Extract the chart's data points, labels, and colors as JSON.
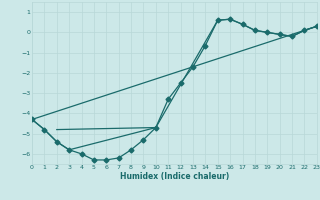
{
  "xlabel": "Humidex (Indice chaleur)",
  "xlim": [
    0,
    23
  ],
  "ylim": [
    -6.5,
    1.5
  ],
  "yticks": [
    1,
    0,
    -1,
    -2,
    -3,
    -4,
    -5,
    -6
  ],
  "xticks": [
    0,
    1,
    2,
    3,
    4,
    5,
    6,
    7,
    8,
    9,
    10,
    11,
    12,
    13,
    14,
    15,
    16,
    17,
    18,
    19,
    20,
    21,
    22,
    23
  ],
  "bg_color": "#cce8e8",
  "grid_color": "#b8d8d8",
  "line_color": "#1a6b6b",
  "curve_x": [
    0,
    1,
    2,
    3,
    4,
    5,
    6,
    7,
    8,
    9,
    10,
    11,
    12,
    13,
    14,
    15,
    16,
    17,
    18,
    19,
    20,
    21,
    22,
    23
  ],
  "curve_y": [
    -4.3,
    -4.8,
    -5.4,
    -5.8,
    -6.0,
    -6.3,
    -6.3,
    -6.2,
    -5.8,
    -5.3,
    -4.7,
    -3.3,
    -2.5,
    -1.7,
    -0.65,
    0.6,
    0.65,
    0.4,
    0.1,
    0.0,
    -0.1,
    -0.2,
    0.1,
    0.3
  ],
  "line2_x": [
    0,
    1,
    2,
    3,
    10,
    15,
    16,
    17,
    18,
    19,
    20,
    21,
    22,
    23
  ],
  "line2_y": [
    -4.3,
    -4.8,
    -5.4,
    -5.8,
    -4.7,
    0.6,
    0.65,
    0.4,
    0.1,
    0.0,
    -0.1,
    -0.2,
    0.1,
    0.3
  ],
  "line3_x": [
    0,
    23
  ],
  "line3_y": [
    -4.3,
    0.3
  ],
  "hline_x": [
    2,
    10
  ],
  "hline_y": [
    -4.8,
    -4.7
  ]
}
